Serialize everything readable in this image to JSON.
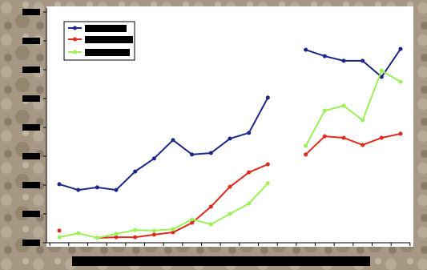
{
  "chart_data": {
    "type": "line",
    "categories": [
      null,
      null,
      null,
      null,
      null,
      null,
      null,
      null,
      null,
      null,
      null,
      null,
      null,
      null,
      null,
      null,
      null,
      null,
      null
    ],
    "series": [
      {
        "color": "#1c2686",
        "values": [
          2.03,
          1.83,
          1.92,
          1.83,
          2.47,
          2.92,
          3.56,
          3.06,
          3.11,
          3.61,
          3.81,
          5.03,
          null,
          6.69,
          6.47,
          6.31,
          6.31,
          5.75,
          6.72
        ]
      },
      {
        "color": "#e02a1e",
        "values": [
          0.42,
          null,
          0.17,
          0.19,
          0.19,
          0.28,
          0.36,
          0.69,
          1.25,
          1.94,
          2.44,
          2.72,
          null,
          3.06,
          3.69,
          3.64,
          3.39,
          3.64,
          3.78
        ]
      },
      {
        "color": "#9cf05a",
        "values": [
          0.19,
          0.33,
          0.17,
          0.31,
          0.44,
          0.42,
          0.47,
          0.81,
          0.64,
          1.0,
          1.36,
          2.06,
          null,
          3.36,
          4.58,
          4.75,
          4.25,
          5.97,
          5.58
        ]
      }
    ],
    "ylim": [
      0,
      8
    ],
    "yticks": [
      0,
      1,
      2,
      3,
      4,
      5,
      6,
      7,
      8
    ]
  }
}
